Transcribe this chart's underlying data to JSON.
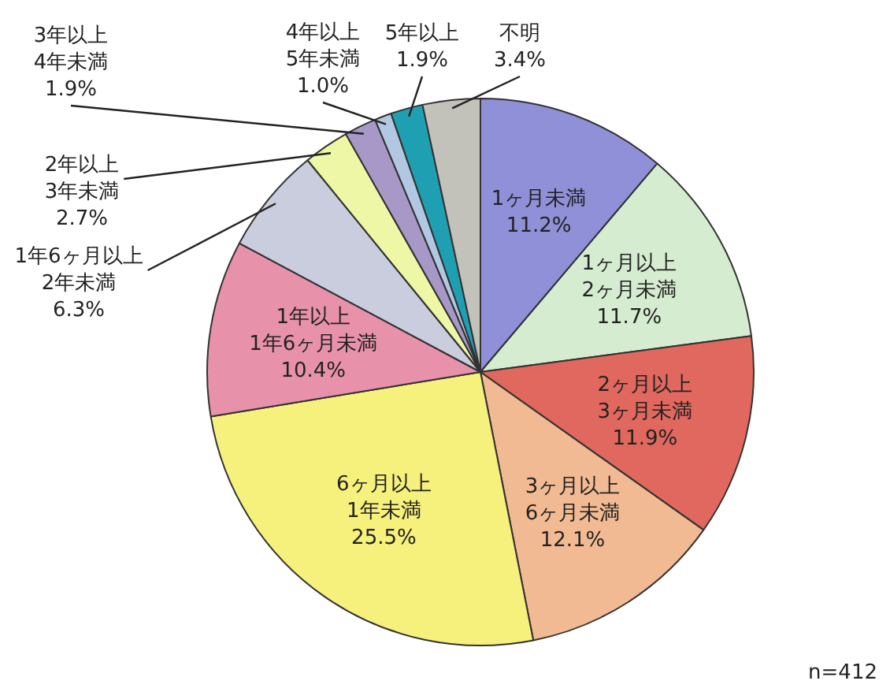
{
  "chart_data": {
    "type": "pie",
    "categories": [
      "1ヶ月未満",
      "1ヶ月以上\n2ヶ月未満",
      "2ヶ月以上\n3ヶ月未満",
      "3ヶ月以上\n6ヶ月未満",
      "6ヶ月以上\n1年未満",
      "1年以上\n1年6ヶ月未満",
      "1年6ヶ月以上\n2年未満",
      "2年以上\n3年未満",
      "3年以上\n4年未満",
      "4年以上\n5年未満",
      "5年以上",
      "不明"
    ],
    "values": [
      11.2,
      11.7,
      11.9,
      12.1,
      25.5,
      10.4,
      6.3,
      2.7,
      1.9,
      1.0,
      1.9,
      3.4
    ],
    "value_labels": [
      "11.2%",
      "11.7%",
      "11.9%",
      "12.1%",
      "25.5%",
      "10.4%",
      "6.3%",
      "2.7%",
      "1.9%",
      "1.0%",
      "1.9%",
      "3.4%"
    ],
    "colors": [
      "#8f90d8",
      "#d6ecd0",
      "#e0685e",
      "#f2ba92",
      "#f6f07c",
      "#e891aa",
      "#c9cddd",
      "#eef7a6",
      "#a898c8",
      "#b2c8e2",
      "#1fa0b2",
      "#c2c2ba"
    ],
    "annotations": [
      "n=412"
    ],
    "legend": false
  }
}
